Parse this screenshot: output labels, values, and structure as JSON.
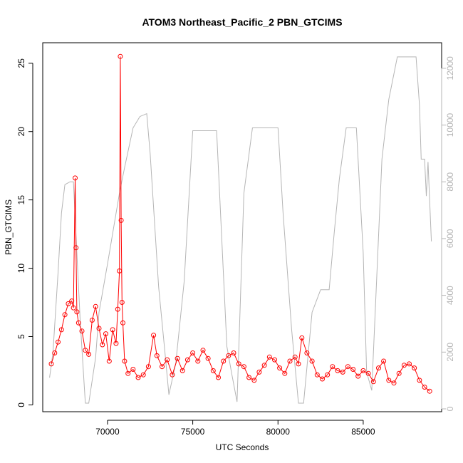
{
  "chart_data": {
    "type": "scatter",
    "title": "ATOM3 Northeast_Pacific_2 PBN_GTCIMS",
    "xlabel": "UTC Seconds",
    "ylabel": "PBN_GTCIMS",
    "xlim": [
      66200,
      89600
    ],
    "ylim": [
      -0.5,
      26.5
    ],
    "y2lim": [
      -100,
      12900
    ],
    "x_ticks": [
      70000,
      75000,
      80000,
      85000
    ],
    "x_tick_labels": [
      "70000",
      "75000",
      "80000",
      "85000"
    ],
    "y_ticks": [
      0,
      5,
      10,
      15,
      20,
      25
    ],
    "y_tick_labels": [
      "0",
      "5",
      "10",
      "15",
      "20",
      "25"
    ],
    "y2_ticks": [
      0,
      2000,
      4000,
      6000,
      8000,
      10000,
      12000
    ],
    "y2_tick_labels": [
      "0",
      "2000",
      "4000",
      "6000",
      "8000",
      "10000",
      "12000"
    ],
    "grid": false,
    "legend": "none",
    "colors": {
      "series": "#ff0000",
      "altitude": "#b5b5b5"
    },
    "series": [
      {
        "axis": "left",
        "style": "line+open-circle",
        "x": [
          66700,
          66900,
          67100,
          67300,
          67500,
          67700,
          67900,
          68000,
          68100,
          68150,
          68200,
          68300,
          68500,
          68700,
          68900,
          69100,
          69300,
          69500,
          69700,
          69900,
          70100,
          70300,
          70500,
          70600,
          70700,
          70750,
          70800,
          70850,
          70900,
          71000,
          71200,
          71500,
          71800,
          72100,
          72400,
          72700,
          72900,
          73200,
          73500,
          73800,
          74100,
          74400,
          74700,
          75000,
          75300,
          75600,
          75900,
          76200,
          76500,
          76800,
          77100,
          77400,
          77700,
          78000,
          78300,
          78600,
          78900,
          79200,
          79500,
          79800,
          80100,
          80400,
          80700,
          81000,
          81200,
          81400,
          81700,
          82000,
          82300,
          82600,
          82900,
          83200,
          83500,
          83800,
          84100,
          84400,
          84700,
          85000,
          85300,
          85600,
          85900,
          86200,
          86500,
          86800,
          87100,
          87400,
          87700,
          88000,
          88300,
          88600,
          88900
        ],
        "y": [
          3.0,
          3.8,
          4.6,
          5.5,
          6.6,
          7.4,
          7.6,
          7.1,
          16.6,
          11.5,
          6.8,
          6.0,
          5.4,
          4.0,
          3.7,
          6.2,
          7.2,
          5.6,
          4.4,
          5.2,
          3.2,
          5.5,
          4.5,
          7.0,
          9.8,
          25.5,
          13.5,
          7.5,
          6.0,
          3.2,
          2.3,
          2.6,
          2.0,
          2.2,
          2.8,
          5.1,
          3.6,
          2.8,
          3.3,
          2.2,
          3.4,
          2.5,
          3.3,
          3.8,
          3.2,
          4.0,
          3.4,
          2.5,
          2.0,
          3.2,
          3.6,
          3.8,
          3.0,
          2.8,
          2.0,
          1.8,
          2.4,
          2.9,
          3.5,
          3.3,
          2.7,
          2.3,
          3.2,
          3.5,
          3.0,
          4.9,
          3.8,
          3.2,
          2.2,
          1.9,
          2.2,
          2.8,
          2.5,
          2.4,
          2.8,
          2.6,
          2.1,
          2.5,
          2.3,
          1.7,
          2.7,
          3.2,
          1.8,
          1.6,
          2.3,
          2.9,
          3.0,
          2.7,
          1.8,
          1.3,
          1.0
        ]
      },
      {
        "axis": "right",
        "name": "",
        "style": "line",
        "x": [
          66600,
          66800,
          67100,
          67300,
          67500,
          67800,
          68000,
          68200,
          68400,
          68700,
          68900,
          69300,
          69500,
          70000,
          70700,
          71000,
          71500,
          71900,
          72300,
          72500,
          73000,
          73400,
          73600,
          74000,
          74500,
          75000,
          75500,
          76000,
          76400,
          77000,
          77300,
          77600,
          78000,
          78500,
          79000,
          79500,
          80000,
          80300,
          80800,
          81200,
          81500,
          82000,
          82500,
          83000,
          83300,
          83600,
          84000,
          84600,
          85000,
          85200,
          85500,
          86100,
          86500,
          87000,
          87500,
          88100,
          88300,
          88400,
          88600,
          88700,
          88800,
          89000
        ],
        "y": [
          1100,
          2000,
          4800,
          6900,
          7900,
          8000,
          8000,
          5500,
          3100,
          200,
          200,
          1800,
          3400,
          5100,
          7600,
          8500,
          9900,
          10300,
          10400,
          9000,
          4300,
          1800,
          500,
          1600,
          4500,
          9800,
          9800,
          9800,
          9800,
          2200,
          1200,
          250,
          7600,
          9900,
          9900,
          9900,
          9900,
          6900,
          2800,
          200,
          200,
          3400,
          4200,
          4200,
          6200,
          8100,
          9900,
          9900,
          5500,
          1300,
          650,
          8800,
          10900,
          12400,
          12400,
          12400,
          10700,
          8800,
          8800,
          7500,
          8700,
          5900
        ]
      }
    ]
  }
}
